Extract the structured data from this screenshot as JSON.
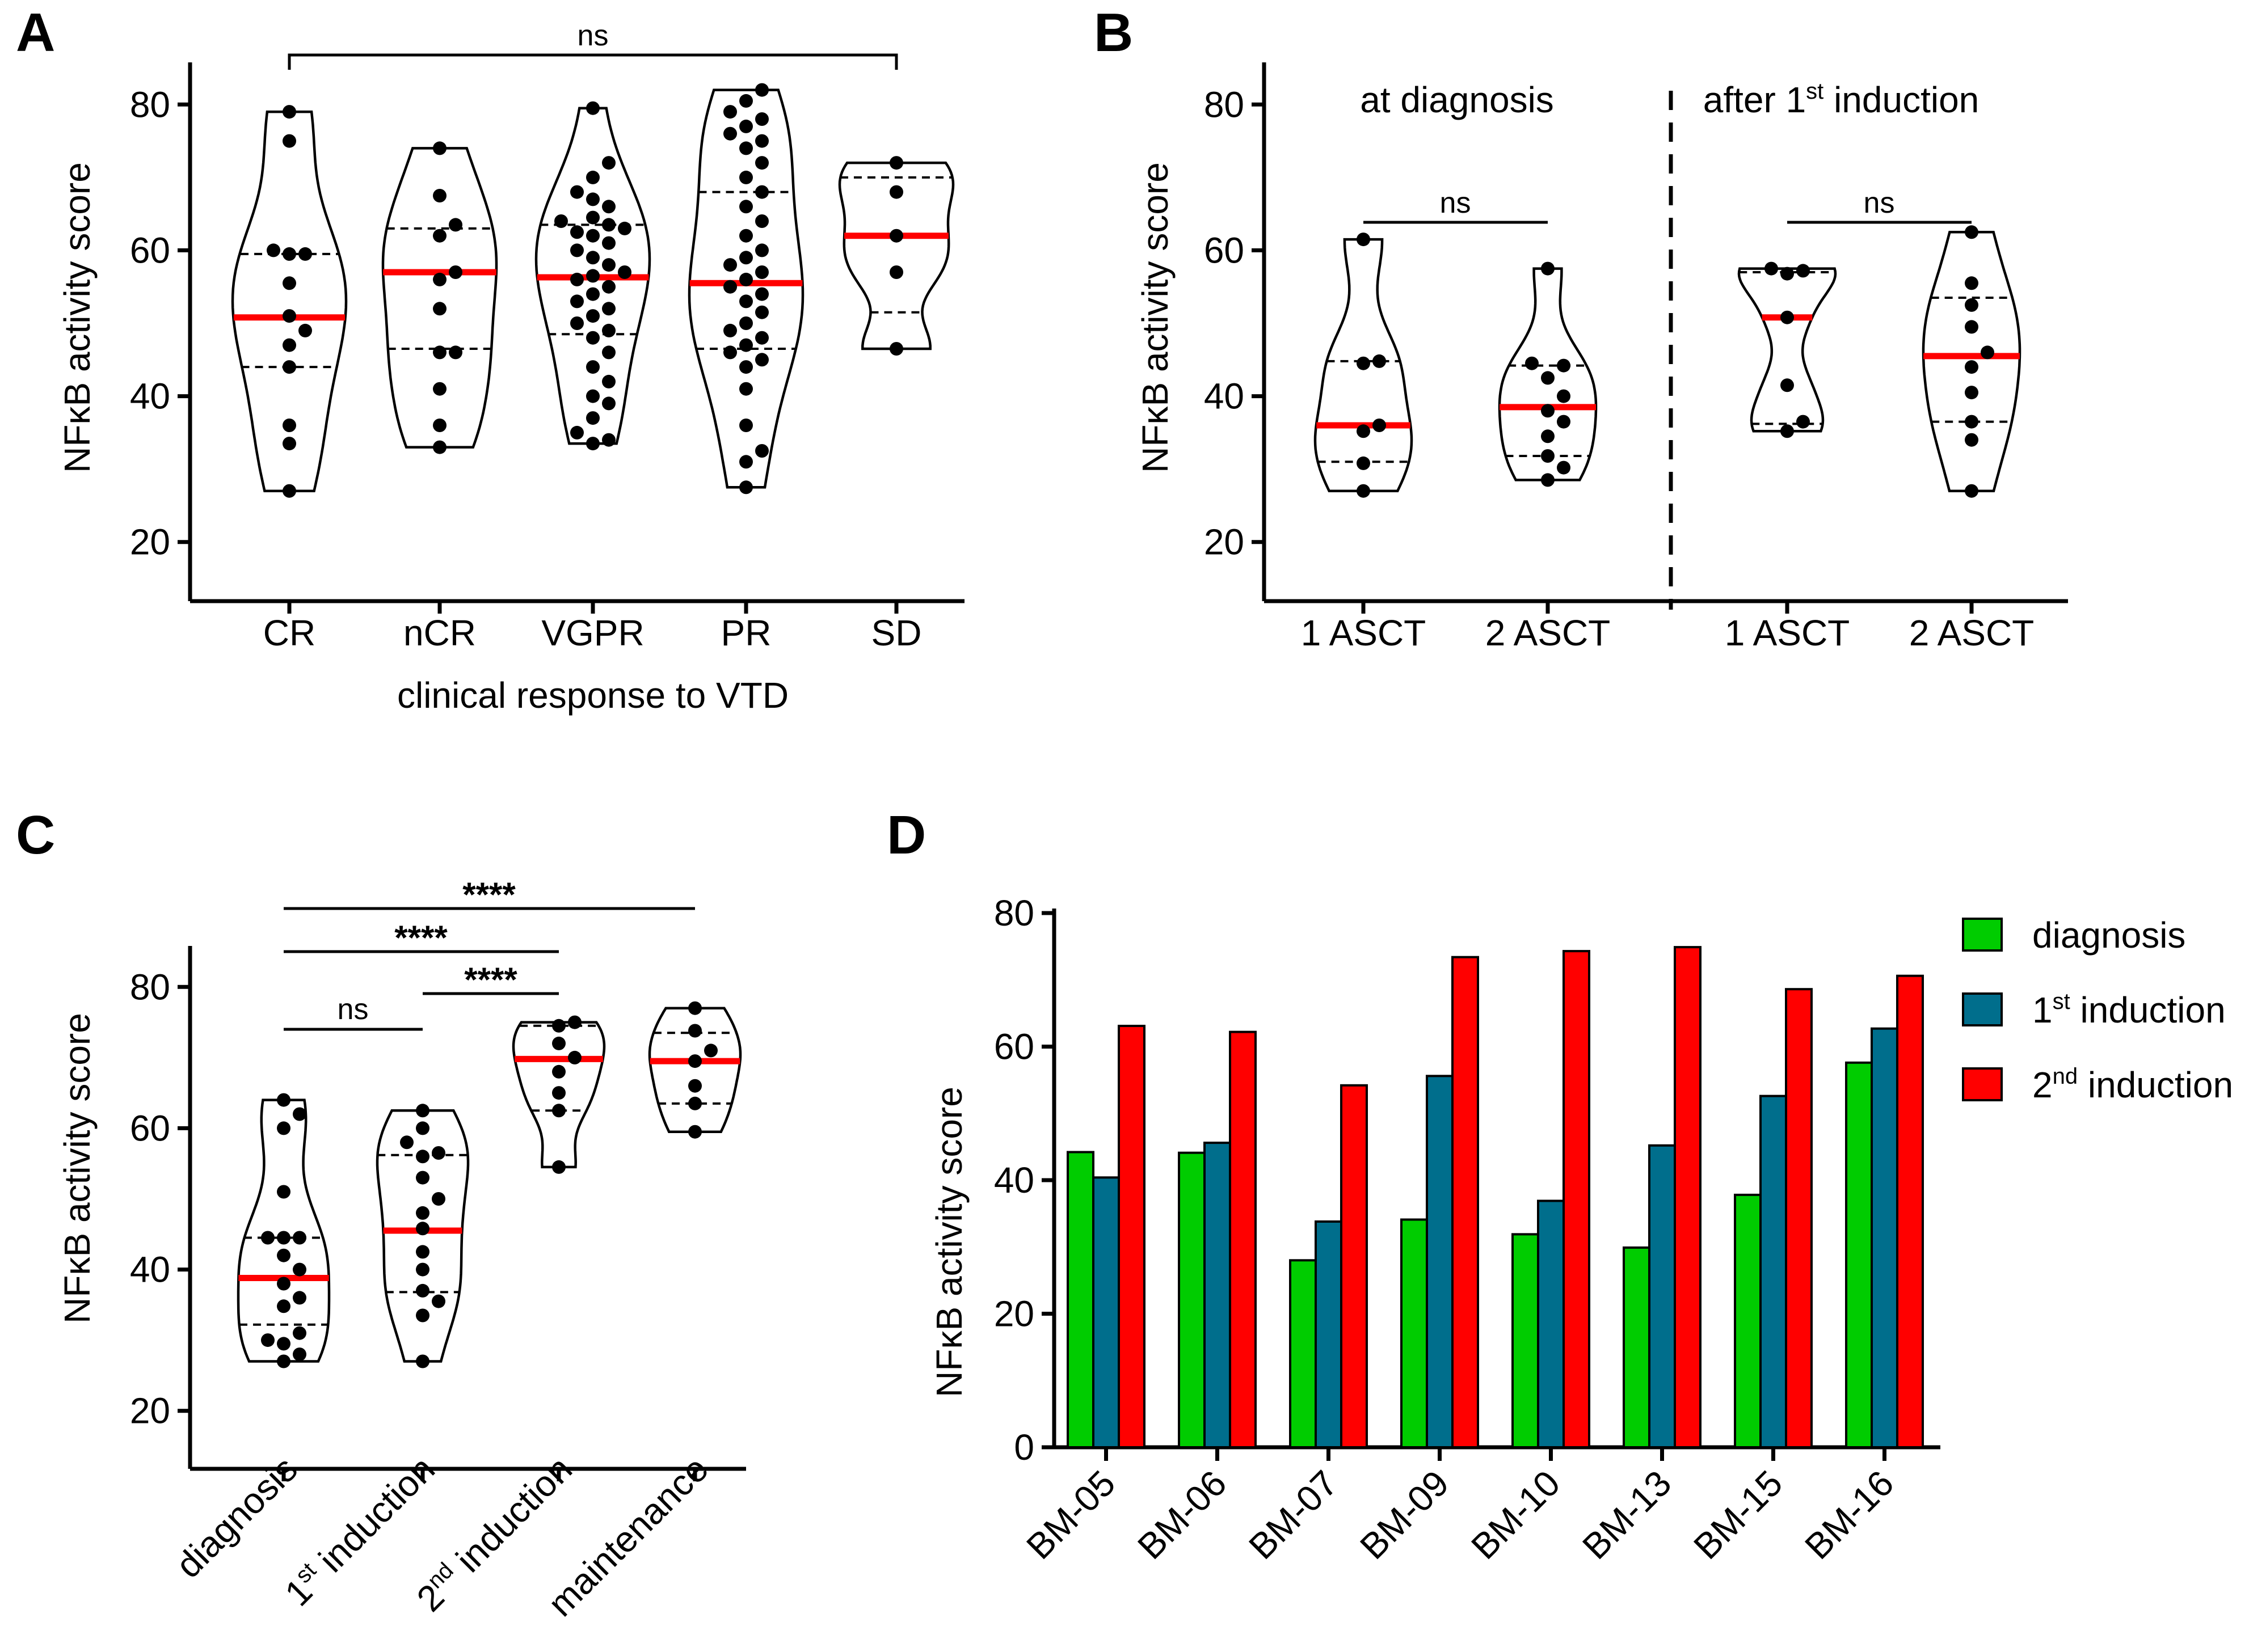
{
  "panels": {
    "A": {
      "letter": "A",
      "ylabel": "NFκB activity score",
      "xlabel": "clinical response to VTD",
      "yticks": [
        20,
        40,
        60,
        80
      ],
      "ylim": [
        15,
        85
      ],
      "sig_label": "ns"
    },
    "B": {
      "letter": "B",
      "ylabel": "NFκB activity score",
      "yticks": [
        20,
        40,
        60,
        80
      ],
      "ylim": [
        15,
        85
      ],
      "group1_title": "at diagnosis",
      "group2_title_pre": "after 1",
      "group2_title_sup": "st",
      "group2_title_post": " induction",
      "sig1": "ns",
      "sig2": "ns"
    },
    "C": {
      "letter": "C",
      "ylabel": "NFκB activity score",
      "yticks": [
        20,
        40,
        60,
        80
      ],
      "ylim": [
        15,
        85
      ],
      "sig_ns": "ns",
      "sig_stars": "****",
      "xtick_diagnosis": "diagnosis",
      "xtick_ind_num": "1",
      "xtick_ind_sup": "st",
      "xtick_ind_word": " induction",
      "xtick_ind2_num": "2",
      "xtick_ind2_sup": "nd",
      "xtick_ind2_word": " induction",
      "xtick_maintenance": "maintenance"
    },
    "D": {
      "letter": "D",
      "ylabel": "NFκB activity score",
      "yticks": [
        0,
        20,
        40,
        60,
        80
      ],
      "ylim": [
        0,
        80
      ],
      "legend": [
        {
          "num": "",
          "sup": "",
          "text": "diagnosis",
          "color": "#00cc00"
        },
        {
          "num": "1",
          "sup": "st",
          "text": " induction",
          "color": "#006e8c"
        },
        {
          "num": "2",
          "sup": "nd",
          "text": " induction",
          "color": "#ff0000"
        }
      ]
    }
  },
  "chart_data": [
    {
      "panel": "A",
      "type": "violin",
      "categories": [
        "CR",
        "nCR",
        "VGPR",
        "PR",
        "SD"
      ],
      "range": [
        [
          27,
          79
        ],
        [
          33,
          74
        ],
        [
          33.5,
          79.5
        ],
        [
          27.5,
          82
        ],
        [
          46.5,
          72
        ]
      ],
      "median": [
        50.8,
        57,
        56.3,
        55.5,
        62
      ],
      "q1": [
        44,
        46.5,
        48.5,
        46.5,
        51.5
      ],
      "q3": [
        59.5,
        63,
        63.5,
        68,
        70
      ],
      "points": [
        [
          27,
          33.5,
          36,
          44,
          47,
          49,
          51,
          55.5,
          59.5,
          59.5,
          60,
          75,
          79
        ],
        [
          33,
          36,
          41,
          46,
          46,
          52,
          56,
          57,
          62,
          63.5,
          67.5,
          74
        ],
        [
          33.5,
          34,
          35,
          37,
          39,
          40,
          42,
          44,
          46,
          48,
          49,
          50,
          51,
          52,
          53,
          54,
          55,
          56,
          56.5,
          57,
          58,
          59,
          60,
          61,
          62,
          62.5,
          63,
          63.5,
          64,
          64.5,
          66,
          67,
          68,
          70,
          72,
          79.5
        ],
        [
          27.5,
          31,
          32.5,
          36,
          41,
          44,
          45,
          46,
          47,
          48,
          49,
          50,
          51.5,
          53,
          54,
          55,
          56,
          57,
          58,
          59,
          60,
          62,
          64,
          66,
          68,
          70,
          72,
          74,
          75,
          76,
          77,
          78,
          79,
          80.5,
          82
        ],
        [
          46.5,
          57,
          62,
          68,
          72
        ]
      ],
      "ylabel": "NFκB activity score",
      "xlabel": "clinical response to VTD",
      "ylim": [
        15,
        85
      ]
    },
    {
      "panel": "B",
      "type": "violin",
      "groups": [
        "at diagnosis",
        "after 1st induction"
      ],
      "categories": [
        "1 ASCT",
        "2 ASCT",
        "1 ASCT",
        "2 ASCT"
      ],
      "range": [
        [
          27,
          61.5
        ],
        [
          28.5,
          57.5
        ],
        [
          35.2,
          57.5
        ],
        [
          27,
          62.5
        ]
      ],
      "median": [
        36,
        38.5,
        50.8,
        45.5
      ],
      "q1": [
        31,
        31.8,
        36.2,
        36.5
      ],
      "q3": [
        44.8,
        44.2,
        57,
        53.5
      ],
      "points": [
        [
          27,
          30.8,
          35.2,
          36,
          44.5,
          44.8,
          61.5
        ],
        [
          28.5,
          30.2,
          31.8,
          34.5,
          36.5,
          38,
          40,
          42.5,
          44.2,
          44.5,
          57.5
        ],
        [
          35.2,
          36.5,
          41.5,
          50.8,
          56.8,
          57.2,
          57.5
        ],
        [
          27,
          34,
          36.5,
          40.5,
          44,
          46,
          49.5,
          52.5,
          55.5,
          62.5
        ]
      ],
      "ylabel": "NFκB activity score",
      "ylim": [
        15,
        85
      ]
    },
    {
      "panel": "C",
      "type": "violin",
      "categories": [
        "diagnosis",
        "1st induction",
        "2nd induction",
        "maintenance"
      ],
      "range": [
        [
          27,
          64
        ],
        [
          27,
          62.5
        ],
        [
          54.5,
          75
        ],
        [
          59.5,
          77
        ]
      ],
      "median": [
        38.8,
        45.5,
        69.8,
        69.5
      ],
      "q1": [
        32.2,
        36.8,
        62.5,
        63.5
      ],
      "q3": [
        44.5,
        56.2,
        74.5,
        73.5
      ],
      "points": [
        [
          27,
          28,
          29.5,
          30,
          31,
          34.8,
          36,
          38,
          40,
          42,
          44.5,
          44.5,
          44.5,
          51,
          60,
          62,
          64
        ],
        [
          27,
          33.5,
          35.5,
          37,
          40,
          42.5,
          45.8,
          48,
          50,
          53,
          56,
          56.5,
          58,
          60,
          62.5
        ],
        [
          54.5,
          62.5,
          65,
          68,
          70,
          72,
          74.5,
          75
        ],
        [
          59.5,
          63.5,
          66,
          69.5,
          71,
          73.8,
          77
        ]
      ],
      "ylabel": "NFκB activity score",
      "ylim": [
        15,
        85
      ]
    },
    {
      "panel": "D",
      "type": "bar",
      "categories": [
        "BM-05",
        "BM-06",
        "BM-07",
        "BM-09",
        "BM-10",
        "BM-13",
        "BM-15",
        "BM-16"
      ],
      "series": [
        {
          "name": "diagnosis",
          "values": [
            44.2,
            44.1,
            28,
            34.1,
            31.9,
            29.9,
            37.8,
            57.6
          ]
        },
        {
          "name": "1st induction",
          "values": [
            40.4,
            45.6,
            33.8,
            55.6,
            36.9,
            45.2,
            52.6,
            62.7
          ]
        },
        {
          "name": "2nd induction",
          "values": [
            63.1,
            62.2,
            54.2,
            73.4,
            74.3,
            74.9,
            68.6,
            70.6
          ]
        }
      ],
      "ylabel": "NFκB activity score",
      "ylim": [
        0,
        80
      ]
    }
  ]
}
